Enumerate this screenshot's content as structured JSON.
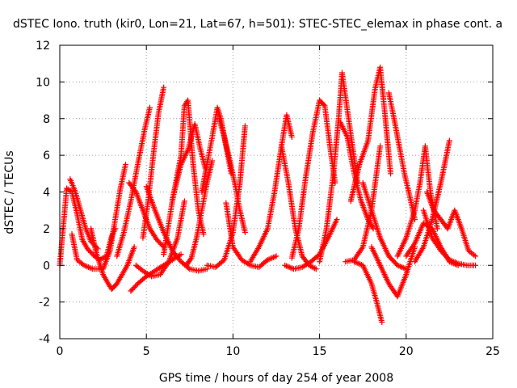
{
  "chart_data": {
    "type": "scatter",
    "title": "dSTEC Iono. truth (kir0, Lon=21, Lat=67, h=501): STEC-STEC_elemax in phase cont. a",
    "xlabel": "GPS time / hours of day 254 of year 2008",
    "ylabel": "dSTEC  / TECUs",
    "xlim": [
      0,
      25
    ],
    "ylim": [
      -4,
      12
    ],
    "x_ticks": [
      0,
      5,
      10,
      15,
      20,
      25
    ],
    "y_ticks": [
      -4,
      -2,
      0,
      2,
      4,
      6,
      8,
      10,
      12
    ],
    "x_tick_labels": [
      "0",
      "5",
      "10",
      "15",
      "20",
      "25"
    ],
    "y_tick_labels": [
      "-4",
      "-2",
      "0",
      "2",
      "4",
      "6",
      "8",
      "10",
      "12"
    ],
    "grid": true,
    "marker": "plus",
    "color": "#ff0000",
    "series": [
      {
        "x": [
          0.0,
          0.4,
          0.7,
          1.0,
          1.3,
          1.6,
          2.0,
          2.3,
          2.7,
          3.0,
          3.2
        ],
        "y": [
          0.0,
          4.2,
          4.0,
          2.8,
          1.4,
          0.9,
          0.5,
          0.3,
          0.5,
          1.6,
          2.0
        ]
      },
      {
        "x": [
          0.7,
          1.0,
          1.4,
          1.9,
          2.5,
          2.9,
          3.2,
          3.5,
          3.8
        ],
        "y": [
          1.7,
          0.3,
          0.0,
          -0.2,
          -0.2,
          0.8,
          2.5,
          4.2,
          5.5
        ]
      },
      {
        "x": [
          0.6,
          0.9,
          1.2,
          1.5,
          1.8,
          2.2
        ],
        "y": [
          4.7,
          4.0,
          3.0,
          2.0,
          1.3,
          0.9
        ]
      },
      {
        "x": [
          1.8,
          2.1,
          2.5,
          2.8,
          3.0,
          3.3,
          3.6,
          3.9,
          4.3
        ],
        "y": [
          2.0,
          0.7,
          -0.5,
          -1.0,
          -1.3,
          -1.0,
          -0.5,
          0.0,
          1.0
        ]
      },
      {
        "x": [
          3.3,
          3.7,
          4.1,
          4.5,
          4.9,
          5.2
        ],
        "y": [
          0.5,
          1.8,
          3.5,
          5.5,
          7.4,
          8.6
        ]
      },
      {
        "x": [
          4.1,
          4.5,
          5.0,
          5.5,
          6.0,
          6.5,
          7.0
        ],
        "y": [
          -1.4,
          -1.0,
          -0.6,
          -0.3,
          0.0,
          0.3,
          0.6
        ]
      },
      {
        "x": [
          4.0,
          4.4,
          4.8,
          5.2,
          5.6,
          6.0
        ],
        "y": [
          4.5,
          4.0,
          3.0,
          2.0,
          1.4,
          1.0
        ]
      },
      {
        "x": [
          4.4,
          4.8,
          5.3,
          5.8,
          6.3,
          6.8,
          7.2
        ],
        "y": [
          0.0,
          -0.3,
          -0.6,
          -0.5,
          0.2,
          1.5,
          3.5
        ]
      },
      {
        "x": [
          4.8,
          5.1,
          5.4,
          5.7,
          6.0
        ],
        "y": [
          1.5,
          3.5,
          6.0,
          8.3,
          9.7
        ]
      },
      {
        "x": [
          5.0,
          5.5,
          6.0,
          6.5,
          7.0,
          7.5,
          8.0,
          8.5
        ],
        "y": [
          4.3,
          3.0,
          1.8,
          0.8,
          0.2,
          -0.2,
          -0.3,
          -0.2
        ]
      },
      {
        "x": [
          6.0,
          6.5,
          7.0,
          7.2,
          7.4,
          7.7,
          8.0,
          8.3
        ],
        "y": [
          0.6,
          3.5,
          6.0,
          8.7,
          9.0,
          5.5,
          3.0,
          1.7
        ]
      },
      {
        "x": [
          6.5,
          7.0,
          7.4,
          7.8,
          8.1,
          8.4
        ],
        "y": [
          3.6,
          5.5,
          6.3,
          7.7,
          6.4,
          5.3
        ]
      },
      {
        "x": [
          7.3,
          7.6,
          7.9,
          8.2,
          8.5,
          8.8
        ],
        "y": [
          0.0,
          0.4,
          1.5,
          3.0,
          4.5,
          5.7
        ]
      },
      {
        "x": [
          8.2,
          8.5,
          8.8,
          9.1,
          9.3,
          9.6,
          9.9
        ],
        "y": [
          4.0,
          5.5,
          7.0,
          8.6,
          8.0,
          6.5,
          5.0
        ]
      },
      {
        "x": [
          9.2,
          9.5,
          9.8,
          10.1,
          10.4,
          10.7
        ],
        "y": [
          8.0,
          7.0,
          5.8,
          4.5,
          3.0,
          1.8
        ]
      },
      {
        "x": [
          8.5,
          9.0,
          9.5,
          10.0,
          10.4,
          10.7
        ],
        "y": [
          0.0,
          -0.1,
          0.3,
          1.8,
          4.5,
          7.6
        ]
      },
      {
        "x": [
          9.6,
          10.0,
          10.5,
          11.0,
          11.5,
          12.0,
          12.5
        ],
        "y": [
          3.4,
          1.0,
          0.3,
          0.0,
          -0.1,
          0.3,
          0.5
        ]
      },
      {
        "x": [
          11.0,
          11.5,
          12.0,
          12.4,
          12.8,
          13.1,
          13.4
        ],
        "y": [
          0.2,
          1.0,
          2.0,
          4.0,
          6.5,
          8.2,
          7.0
        ]
      },
      {
        "x": [
          12.8,
          13.2,
          13.6,
          14.0,
          14.4,
          14.8
        ],
        "y": [
          6.5,
          4.5,
          2.0,
          0.5,
          0.0,
          -0.2
        ]
      },
      {
        "x": [
          13.4,
          13.8,
          14.2,
          14.6,
          15.0,
          15.3,
          15.6,
          15.9
        ],
        "y": [
          0.4,
          2.0,
          4.8,
          7.2,
          9.0,
          8.7,
          6.5,
          4.5
        ]
      },
      {
        "x": [
          13.0,
          13.5,
          14.0,
          14.5,
          15.0,
          15.5,
          16.0
        ],
        "y": [
          0.0,
          -0.2,
          -0.1,
          0.2,
          0.6,
          1.5,
          2.5
        ]
      },
      {
        "x": [
          15.0,
          15.4,
          15.8,
          16.1,
          16.3,
          16.6,
          16.9,
          17.2
        ],
        "y": [
          0.2,
          2.0,
          5.0,
          8.0,
          10.5,
          8.5,
          6.5,
          4.5
        ]
      },
      {
        "x": [
          16.5,
          17.0,
          17.5,
          18.0,
          18.5
        ],
        "y": [
          0.2,
          0.3,
          1.0,
          3.0,
          6.5
        ]
      },
      {
        "x": [
          16.2,
          16.6,
          17.0,
          17.4,
          17.8,
          18.1
        ],
        "y": [
          7.8,
          7.0,
          5.0,
          3.5,
          2.5,
          2.0
        ]
      },
      {
        "x": [
          16.8,
          17.3,
          17.8,
          18.2,
          18.5,
          18.8,
          19.1
        ],
        "y": [
          3.5,
          5.5,
          6.8,
          9.6,
          10.8,
          8.0,
          5.0
        ]
      },
      {
        "x": [
          17.0,
          17.5,
          18.0,
          18.3,
          18.6
        ],
        "y": [
          0.2,
          0.0,
          -1.0,
          -2.0,
          -3.1
        ]
      },
      {
        "x": [
          17.5,
          18.0,
          18.5,
          19.0,
          19.5,
          20.0
        ],
        "y": [
          4.5,
          3.0,
          1.5,
          0.5,
          0.0,
          -0.2
        ]
      },
      {
        "x": [
          18.0,
          18.5,
          19.0,
          19.5,
          20.0,
          20.5
        ],
        "y": [
          1.0,
          0.0,
          -1.0,
          -1.7,
          -0.5,
          1.0
        ]
      },
      {
        "x": [
          19.0,
          19.3,
          19.6,
          19.9,
          20.2,
          20.5
        ],
        "y": [
          9.4,
          8.0,
          6.5,
          5.0,
          3.8,
          2.5
        ]
      },
      {
        "x": [
          19.5,
          20.0,
          20.5,
          20.8,
          21.1,
          21.4,
          21.8
        ],
        "y": [
          0.5,
          1.5,
          3.0,
          4.5,
          6.5,
          4.0,
          2.0
        ]
      },
      {
        "x": [
          20.5,
          21.0,
          21.5,
          22.0,
          22.5
        ],
        "y": [
          0.2,
          1.0,
          2.5,
          4.5,
          6.8
        ]
      },
      {
        "x": [
          21.0,
          21.5,
          22.0,
          22.5,
          23.0,
          23.5,
          24.0
        ],
        "y": [
          3.0,
          1.5,
          0.8,
          0.3,
          0.1,
          0.0,
          0.0
        ]
      },
      {
        "x": [
          21.2,
          21.6,
          22.0,
          22.4,
          22.8,
          23.2,
          23.6,
          24.0
        ],
        "y": [
          4.0,
          3.0,
          2.5,
          2.0,
          3.0,
          2.0,
          0.8,
          0.5
        ]
      },
      {
        "x": [
          20.0,
          20.5,
          21.0,
          21.5,
          22.0,
          22.5,
          23.0
        ],
        "y": [
          0.5,
          1.2,
          2.3,
          2.0,
          1.0,
          0.2,
          0.0
        ]
      }
    ]
  }
}
